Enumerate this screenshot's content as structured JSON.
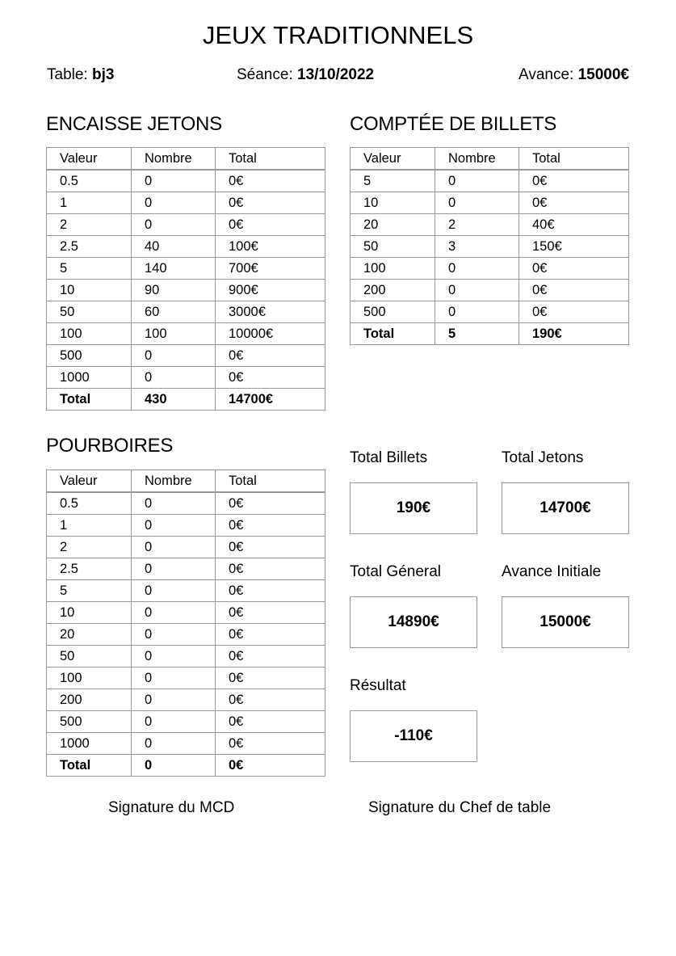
{
  "title": "JEUX TRADITIONNELS",
  "meta": {
    "table_label": "Table:",
    "table_value": "bj3",
    "seance_label": "Séance:",
    "seance_value": "13/10/2022",
    "avance_label": "Avance:",
    "avance_value": "15000€"
  },
  "tables": {
    "jetons": {
      "title": "ENCAISSE JETONS",
      "headers": [
        "Valeur",
        "Nombre",
        "Total"
      ],
      "rows": [
        [
          "0.5",
          "0",
          "0€"
        ],
        [
          "1",
          "0",
          "0€"
        ],
        [
          "2",
          "0",
          "0€"
        ],
        [
          "2.5",
          "40",
          "100€"
        ],
        [
          "5",
          "140",
          "700€"
        ],
        [
          "10",
          "90",
          "900€"
        ],
        [
          "50",
          "60",
          "3000€"
        ],
        [
          "100",
          "100",
          "10000€"
        ],
        [
          "500",
          "0",
          "0€"
        ],
        [
          "1000",
          "0",
          "0€"
        ]
      ],
      "total": [
        "Total",
        "430",
        "14700€"
      ]
    },
    "billets": {
      "title": "COMPTÉE DE BILLETS",
      "headers": [
        "Valeur",
        "Nombre",
        "Total"
      ],
      "rows": [
        [
          "5",
          "0",
          "0€"
        ],
        [
          "10",
          "0",
          "0€"
        ],
        [
          "20",
          "2",
          "40€"
        ],
        [
          "50",
          "3",
          "150€"
        ],
        [
          "100",
          "0",
          "0€"
        ],
        [
          "200",
          "0",
          "0€"
        ],
        [
          "500",
          "0",
          "0€"
        ]
      ],
      "total": [
        "Total",
        "5",
        "190€"
      ]
    },
    "pourboires": {
      "title": "POURBOIRES",
      "headers": [
        "Valeur",
        "Nombre",
        "Total"
      ],
      "rows": [
        [
          "0.5",
          "0",
          "0€"
        ],
        [
          "1",
          "0",
          "0€"
        ],
        [
          "2",
          "0",
          "0€"
        ],
        [
          "2.5",
          "0",
          "0€"
        ],
        [
          "5",
          "0",
          "0€"
        ],
        [
          "10",
          "0",
          "0€"
        ],
        [
          "20",
          "0",
          "0€"
        ],
        [
          "50",
          "0",
          "0€"
        ],
        [
          "100",
          "0",
          "0€"
        ],
        [
          "200",
          "0",
          "0€"
        ],
        [
          "500",
          "0",
          "0€"
        ],
        [
          "1000",
          "0",
          "0€"
        ]
      ],
      "total": [
        "Total",
        "0",
        "0€"
      ]
    }
  },
  "summary": {
    "total_billets": {
      "label": "Total Billets",
      "value": "190€"
    },
    "total_jetons": {
      "label": "Total Jetons",
      "value": "14700€"
    },
    "total_general": {
      "label": "Total Géneral",
      "value": "14890€"
    },
    "avance_initiale": {
      "label": "Avance Initiale",
      "value": "15000€"
    },
    "resultat": {
      "label": "Résultat",
      "value": "-110€"
    }
  },
  "signatures": {
    "mcd": "Signature du MCD",
    "chef": "Signature du Chef de table"
  }
}
